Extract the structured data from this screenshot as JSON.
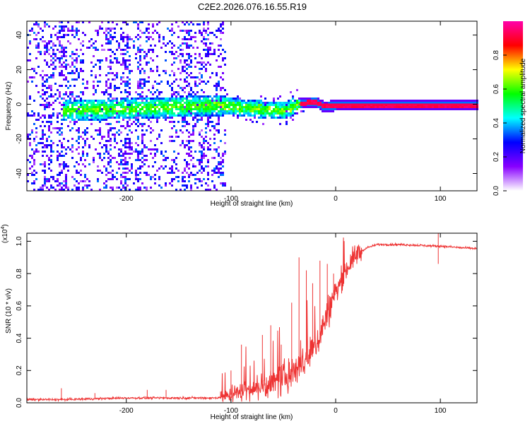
{
  "title": "C2E2.2026.076.16.55.R19",
  "chart_data": [
    {
      "type": "heatmap",
      "xlabel": "Height of straight line (km)",
      "ylabel": "Frequency (Hz)",
      "xlim": [
        -295,
        135
      ],
      "ylim": [
        -50,
        48
      ],
      "x_ticks": [
        -200,
        -100,
        0,
        100
      ],
      "x_tick_labels": [
        "-200",
        "-100",
        "0",
        "100"
      ],
      "y_ticks": [
        -40,
        -20,
        0,
        20,
        40
      ],
      "y_tick_labels": [
        "-40",
        "-20",
        "0",
        "20",
        "40"
      ],
      "colorbar": {
        "label": "Normalized spectral amplitude",
        "range": [
          0,
          1
        ],
        "ticks": [
          0.0,
          0.2,
          0.4,
          0.6,
          0.8
        ],
        "tick_labels": [
          "0.0",
          "0.2",
          "0.4",
          "0.6",
          "0.8"
        ],
        "colors": [
          "#ffffff",
          "#8800ff",
          "#0000ff",
          "#00ffff",
          "#00ff00",
          "#ffff00",
          "#ff0000",
          "#ff00aa"
        ]
      },
      "features": {
        "noise_region_x": [
          -295,
          -105
        ],
        "band_start_x": -262,
        "band_center_freq": [
          [
            -262,
            -3
          ],
          [
            -200,
            -2
          ],
          [
            -110,
            0
          ],
          [
            -80,
            -2
          ],
          [
            -50,
            -3
          ],
          [
            -35,
            1
          ],
          [
            -20,
            2
          ],
          [
            -12,
            -1
          ],
          [
            0,
            0
          ],
          [
            135,
            0
          ]
        ],
        "line_region_x": [
          -35,
          135
        ]
      }
    },
    {
      "type": "line",
      "xlabel": "Height of straight line (km)",
      "ylabel": "SNR (10 * v/v)",
      "y_multiplier": "(x10",
      "y_exponent": "4",
      "y_multiplier_close": ")",
      "xlim": [
        -295,
        135
      ],
      "ylim": [
        0,
        1.05
      ],
      "x_ticks": [
        -200,
        -100,
        0,
        100
      ],
      "x_tick_labels": [
        "-200",
        "-100",
        "0",
        "100"
      ],
      "y_ticks": [
        0.0,
        0.2,
        0.4,
        0.6,
        0.8,
        1.0
      ],
      "y_tick_labels": [
        "0.0",
        "0.2",
        "0.4",
        "0.6",
        "0.8",
        "1.0"
      ],
      "color": "#ee3333",
      "series": [
        {
          "name": "SNR",
          "x": [
            -295,
            -260,
            -230,
            -200,
            -160,
            -130,
            -115,
            -105,
            -95,
            -85,
            -75,
            -65,
            -55,
            -45,
            -38,
            -30,
            -22,
            -15,
            -8,
            0,
            8,
            15,
            22,
            30,
            40,
            60,
            80,
            95,
            100,
            110,
            120,
            135
          ],
          "y": [
            0.02,
            0.02,
            0.025,
            0.03,
            0.03,
            0.03,
            0.03,
            0.04,
            0.06,
            0.08,
            0.09,
            0.11,
            0.13,
            0.17,
            0.22,
            0.25,
            0.32,
            0.42,
            0.55,
            0.68,
            0.8,
            0.88,
            0.93,
            0.96,
            0.98,
            0.98,
            0.975,
            0.97,
            0.97,
            0.965,
            0.96,
            0.955
          ]
        }
      ],
      "spikes": [
        [
          -262,
          0.09
        ],
        [
          -230,
          0.06
        ],
        [
          -180,
          0.08
        ],
        [
          -162,
          0.08
        ],
        [
          -110,
          0.07
        ],
        [
          -100,
          0.2
        ],
        [
          -90,
          0.36
        ],
        [
          -70,
          0.42
        ],
        [
          -62,
          0.48
        ],
        [
          -52,
          0.36
        ],
        [
          -42,
          0.62
        ],
        [
          -35,
          0.9
        ],
        [
          -28,
          0.82
        ],
        [
          -22,
          0.74
        ],
        [
          -15,
          0.88
        ],
        [
          -8,
          0.86
        ],
        [
          -2,
          0.8
        ],
        [
          98,
          1.05
        ]
      ]
    }
  ]
}
